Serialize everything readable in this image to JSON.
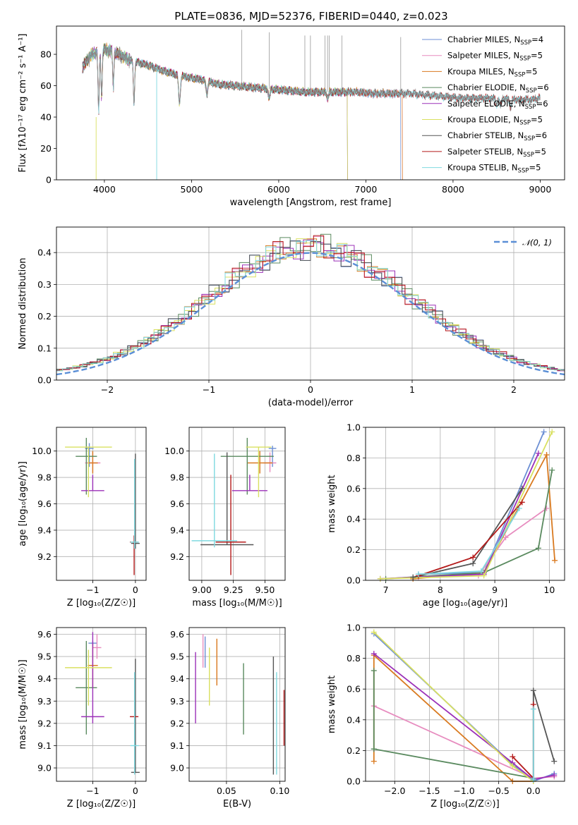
{
  "figure": {
    "title": "PLATE=0836, MJD=52376, FIBERID=0440, z=0.023"
  },
  "colors": {
    "Chabrier MILES": "#6c8fd4",
    "Salpeter MILES": "#e78cbf",
    "Kroupa MILES": "#d97a20",
    "Chabrier ELODIE": "#5a8a5f",
    "Salpeter ELODIE": "#9b30b8",
    "Kroupa ELODIE": "#d9e060",
    "Chabrier STELIB": "#555555",
    "Salpeter STELIB": "#b41a1a",
    "Kroupa STELIB": "#7fd9e0",
    "normal": "#5b8fd6"
  },
  "chart_data": [
    {
      "id": "spectrum",
      "type": "line",
      "xlabel": "wavelength [Angstrom, rest frame]",
      "ylabel": "Flux [fλ10⁻¹⁷ erg cm⁻² s⁻¹ A⁻¹]",
      "xlim": [
        3450,
        9280
      ],
      "ylim": [
        0,
        98
      ],
      "xticks": [
        4000,
        5000,
        6000,
        7000,
        8000,
        9000
      ],
      "yticks": [
        0,
        20,
        40,
        60,
        80
      ],
      "grid": false,
      "legend_position": "top-right",
      "data_series": {
        "name": "data",
        "x": [
          3750,
          3850,
          4000,
          4100,
          4300,
          4500,
          4700,
          4900,
          5100,
          5300,
          5500,
          5700,
          5900,
          6100,
          6300,
          6500,
          6700,
          6900,
          7100,
          7300,
          7500,
          7700,
          7900,
          8100,
          8300,
          8500,
          8700,
          8900,
          9000
        ],
        "y": [
          72,
          80,
          83,
          82,
          76,
          73,
          69,
          66,
          64,
          61,
          60,
          59,
          58,
          57,
          56,
          56,
          56,
          56,
          55,
          55,
          55,
          54,
          53,
          52,
          52,
          52,
          51,
          51,
          52
        ]
      },
      "absorption_lines": [
        3934,
        3968,
        4102,
        4340,
        4861,
        5175,
        5890,
        6563,
        8498,
        8542,
        8662
      ],
      "sky_spikes": [
        5577,
        5892,
        6300,
        6364,
        6532,
        6560,
        6580,
        6724,
        7400
      ],
      "series": [
        {
          "name": "Chabrier MILES",
          "nssp": "4",
          "end": 7400
        },
        {
          "name": "Salpeter MILES",
          "nssp": "5",
          "end": 7420
        },
        {
          "name": "Kroupa MILES",
          "nssp": "5",
          "end": 7420
        },
        {
          "name": "Chabrier ELODIE",
          "nssp": "6",
          "end": 6790
        },
        {
          "name": "Salpeter ELODIE",
          "nssp": "6",
          "end": 6790
        },
        {
          "name": "Kroupa ELODIE",
          "nssp": "5",
          "end": 6790
        },
        {
          "name": "Chabrier STELIB",
          "nssp": "6",
          "end": 9000
        },
        {
          "name": "Salpeter STELIB",
          "nssp": "5",
          "end": 9000
        },
        {
          "name": "Kroupa STELIB",
          "nssp": "5",
          "end": 9000
        }
      ]
    },
    {
      "id": "residuals",
      "type": "line",
      "xlabel": "(data-model)/error",
      "ylabel": "Normed distribution",
      "xlim": [
        -2.5,
        2.5
      ],
      "ylim": [
        0,
        0.48
      ],
      "xticks": [
        -2,
        -1,
        0,
        1,
        2
      ],
      "yticks": [
        0.0,
        0.1,
        0.2,
        0.3,
        0.4
      ],
      "grid": true,
      "legend_position": "top-right",
      "legend": "𝒩(0, 1)",
      "bin_width": 0.1
    },
    {
      "id": "age_vs_z",
      "type": "scatter",
      "xlabel": "Z [log₁₀(Z/Z☉)]",
      "ylabel": "age  [log₁₀(age/yr)]",
      "xlim": [
        -1.85,
        0.25
      ],
      "ylim": [
        9.02,
        10.18
      ],
      "xticks": [
        -1,
        0
      ],
      "yticks": [
        9.2,
        9.4,
        9.6,
        9.8,
        10.0
      ],
      "grid": true,
      "points": [
        {
          "name": "Chabrier MILES",
          "x": -1.08,
          "y": 10.02,
          "xerr": 0.1,
          "yerr": [
            0.14,
            0.04
          ]
        },
        {
          "name": "Salpeter MILES",
          "x": -1.0,
          "y": 9.91,
          "xerr": 0.18,
          "yerr": [
            0.07,
            0.08
          ]
        },
        {
          "name": "Kroupa MILES",
          "x": -1.0,
          "y": 9.91,
          "xerr": 0.12,
          "yerr": [
            0.08,
            0.09
          ]
        },
        {
          "name": "Chabrier ELODIE",
          "x": -1.15,
          "y": 9.96,
          "xerr": 0.25,
          "yerr": [
            0.29,
            0.14
          ]
        },
        {
          "name": "Salpeter ELODIE",
          "x": -1.0,
          "y": 9.7,
          "xerr": 0.27,
          "yerr": [
            0.0,
            0.12
          ]
        },
        {
          "name": "Kroupa ELODIE",
          "x": -1.1,
          "y": 10.03,
          "xerr": 0.55,
          "yerr": [
            0.38,
            0.0
          ]
        },
        {
          "name": "Chabrier STELIB",
          "x": 0.0,
          "y": 9.3,
          "xerr": 0.1,
          "yerr": [
            0.04,
            0.68
          ]
        },
        {
          "name": "Salpeter STELIB",
          "x": -0.03,
          "y": 9.31,
          "xerr": 0.1,
          "yerr": [
            0.25,
            0.05
          ]
        },
        {
          "name": "Kroupa STELIB",
          "x": -0.02,
          "y": 9.31,
          "xerr": 0.1,
          "yerr": [
            0.05,
            0.63
          ]
        }
      ]
    },
    {
      "id": "age_vs_mass",
      "type": "scatter",
      "xlabel": "mass [log₁₀(M/M☉)]",
      "ylabel": "",
      "xlim": [
        8.9,
        9.66
      ],
      "ylim": [
        9.02,
        10.18
      ],
      "xticks": [
        9.0,
        9.25,
        9.5
      ],
      "tick_labels": [
        "9.00",
        "9.25",
        "9.50"
      ],
      "yticks": [
        9.2,
        9.4,
        9.6,
        9.8,
        10.0
      ],
      "grid": true,
      "points": [
        {
          "name": "Chabrier MILES",
          "x": 9.56,
          "y": 10.02,
          "xerr": 0.03,
          "yerr": [
            0.14,
            0.02
          ]
        },
        {
          "name": "Salpeter MILES",
          "x": 9.54,
          "y": 9.91,
          "xerr": 0.05,
          "yerr": [
            0.07,
            0.08
          ]
        },
        {
          "name": "Kroupa MILES",
          "x": 9.46,
          "y": 9.91,
          "xerr": 0.1,
          "yerr": [
            0.08,
            0.09
          ]
        },
        {
          "name": "Chabrier ELODIE",
          "x": 9.36,
          "y": 9.96,
          "xerr": 0.21,
          "yerr": [
            0.29,
            0.14
          ]
        },
        {
          "name": "Salpeter ELODIE",
          "x": 9.38,
          "y": 9.7,
          "xerr": 0.14,
          "yerr": [
            0.0,
            0.12
          ]
        },
        {
          "name": "Kroupa ELODIE",
          "x": 9.45,
          "y": 10.03,
          "xerr": 0.1,
          "yerr": [
            0.38,
            0.0
          ]
        },
        {
          "name": "Chabrier STELIB",
          "x": 9.2,
          "y": 9.29,
          "xerr": 0.21,
          "yerr": [
            0.0,
            0.7
          ]
        },
        {
          "name": "Salpeter STELIB",
          "x": 9.23,
          "y": 9.31,
          "xerr": 0.12,
          "yerr": [
            0.25,
            0.51
          ]
        },
        {
          "name": "Kroupa STELIB",
          "x": 9.1,
          "y": 9.32,
          "xerr": 0.18,
          "yerr": [
            0.05,
            0.66
          ]
        }
      ]
    },
    {
      "id": "weight_vs_age",
      "type": "line",
      "xlabel": "age  [log₁₀(age/yr)]",
      "ylabel": "mass weight",
      "xlim": [
        6.63,
        10.28
      ],
      "ylim": [
        0,
        1.0
      ],
      "xticks": [
        7,
        8,
        9,
        10
      ],
      "yticks": [
        0.0,
        0.2,
        0.4,
        0.6,
        0.8,
        1.0
      ],
      "grid": true,
      "series": [
        {
          "name": "Chabrier MILES",
          "x": [
            7.6,
            8.8,
            9.9
          ],
          "y": [
            0.04,
            0.05,
            0.97
          ]
        },
        {
          "name": "Salpeter MILES",
          "x": [
            7.6,
            8.7,
            9.2,
            9.95
          ],
          "y": [
            0.02,
            0.03,
            0.28,
            0.47
          ]
        },
        {
          "name": "Kroupa MILES",
          "x": [
            7.5,
            8.8,
            9.95,
            10.1
          ],
          "y": [
            0.01,
            0.05,
            0.82,
            0.13
          ]
        },
        {
          "name": "Chabrier ELODIE",
          "x": [
            7.0,
            8.8,
            9.8,
            10.05
          ],
          "y": [
            0.01,
            0.05,
            0.21,
            0.72
          ]
        },
        {
          "name": "Salpeter ELODIE",
          "x": [
            6.9,
            8.8,
            9.8
          ],
          "y": [
            0.01,
            0.04,
            0.83
          ]
        },
        {
          "name": "Kroupa ELODIE",
          "x": [
            6.9,
            8.8,
            10.05
          ],
          "y": [
            0.01,
            0.03,
            0.97
          ]
        },
        {
          "name": "Chabrier STELIB",
          "x": [
            7.5,
            8.6,
            9.5
          ],
          "y": [
            0.02,
            0.11,
            0.6
          ]
        },
        {
          "name": "Salpeter STELIB",
          "x": [
            7.6,
            8.6,
            9.5
          ],
          "y": [
            0.03,
            0.15,
            0.51
          ]
        },
        {
          "name": "Kroupa STELIB",
          "x": [
            7.6,
            8.75,
            9.45
          ],
          "y": [
            0.04,
            0.06,
            0.47
          ]
        }
      ]
    },
    {
      "id": "mass_vs_z",
      "type": "scatter",
      "xlabel": "Z [log₁₀(Z/Z☉)]",
      "ylabel": "mass [log₁₀(M/M☉)]",
      "xlim": [
        -1.85,
        0.25
      ],
      "ylim": [
        8.94,
        9.63
      ],
      "xticks": [
        -1,
        0
      ],
      "yticks": [
        9.0,
        9.1,
        9.2,
        9.3,
        9.4,
        9.5,
        9.6
      ],
      "grid": true,
      "points": [
        {
          "name": "Chabrier MILES",
          "x": -1.0,
          "y": 9.56,
          "xerr": 0.1,
          "yerr": [
            0.01,
            0.01
          ]
        },
        {
          "name": "Salpeter MILES",
          "x": -0.9,
          "y": 9.54,
          "xerr": 0.1,
          "yerr": [
            0.05,
            0.06
          ]
        },
        {
          "name": "Kroupa MILES",
          "x": -1.0,
          "y": 9.46,
          "xerr": 0.12,
          "yerr": [
            0.1,
            0.1
          ]
        },
        {
          "name": "Chabrier ELODIE",
          "x": -1.15,
          "y": 9.36,
          "xerr": 0.25,
          "yerr": [
            0.21,
            0.21
          ]
        },
        {
          "name": "Salpeter ELODIE",
          "x": -1.0,
          "y": 9.23,
          "xerr": 0.27,
          "yerr": [
            0.03,
            0.38
          ]
        },
        {
          "name": "Kroupa ELODIE",
          "x": -1.1,
          "y": 9.45,
          "xerr": 0.55,
          "yerr": [
            0.17,
            0.08
          ]
        },
        {
          "name": "Chabrier STELIB",
          "x": 0.0,
          "y": 8.98,
          "xerr": 0.1,
          "yerr": [
            0.0,
            0.51
          ]
        },
        {
          "name": "Salpeter STELIB",
          "x": -0.03,
          "y": 9.23,
          "xerr": 0.1,
          "yerr": [
            0.0,
            0.0
          ]
        },
        {
          "name": "Kroupa STELIB",
          "x": -0.02,
          "y": 9.1,
          "xerr": 0.1,
          "yerr": [
            0.13,
            0.33
          ]
        }
      ]
    },
    {
      "id": "mass_vs_ebv",
      "type": "scatter",
      "xlabel": "E(B-V)",
      "ylabel": "",
      "xlim": [
        0.015,
        0.105
      ],
      "ylim": [
        8.94,
        9.63
      ],
      "xticks": [
        0.05,
        0.1
      ],
      "tick_labels": [
        "0.05",
        "0.10"
      ],
      "yticks": [
        9.0,
        9.1,
        9.2,
        9.3,
        9.4,
        9.5,
        9.6
      ],
      "grid": true,
      "segments": [
        {
          "name": "Chabrier MILES",
          "x": 0.03,
          "y": [
            9.45,
            9.59
          ]
        },
        {
          "name": "Salpeter MILES",
          "x": 0.028,
          "y": [
            9.45,
            9.6
          ]
        },
        {
          "name": "Kroupa MILES",
          "x": 0.041,
          "y": [
            9.37,
            9.58
          ]
        },
        {
          "name": "Chabrier ELODIE",
          "x": 0.066,
          "y": [
            9.15,
            9.47
          ]
        },
        {
          "name": "Salpeter ELODIE",
          "x": 0.021,
          "y": [
            9.2,
            9.52
          ]
        },
        {
          "name": "Kroupa ELODIE",
          "x": 0.034,
          "y": [
            9.28,
            9.54
          ]
        },
        {
          "name": "Chabrier STELIB",
          "x": 0.094,
          "y": [
            8.97,
            9.5
          ]
        },
        {
          "name": "Salpeter STELIB",
          "x": 0.104,
          "y": [
            9.1,
            9.35
          ]
        },
        {
          "name": "Kroupa STELIB",
          "x": 0.097,
          "y": [
            8.97,
            9.43
          ]
        }
      ]
    },
    {
      "id": "weight_vs_z",
      "type": "line",
      "xlabel": "Z [log₁₀(Z/Z☉)]",
      "ylabel": "mass weight",
      "xlim": [
        -2.42,
        0.45
      ],
      "ylim": [
        0,
        1.0
      ],
      "xticks": [
        -2.0,
        -1.5,
        -1.0,
        -0.5,
        0.0
      ],
      "tick_labels": [
        "−2.0",
        "−1.5",
        "−1.0",
        "−0.5",
        "0.0"
      ],
      "yticks": [
        0.0,
        0.2,
        0.4,
        0.6,
        0.8,
        1.0
      ],
      "grid": true,
      "series": [
        {
          "name": "Chabrier MILES",
          "x": [
            -2.3,
            -0.3,
            0.0,
            0.3
          ],
          "y": [
            0.96,
            0.11,
            0.0,
            0.05
          ]
        },
        {
          "name": "Salpeter MILES",
          "x": [
            -2.3,
            0.0,
            0.3
          ],
          "y": [
            0.49,
            0.02,
            0.03
          ]
        },
        {
          "name": "Kroupa MILES",
          "x": [
            -2.3,
            -2.3,
            -0.3,
            0.0
          ],
          "y": [
            0.13,
            0.82,
            0.0,
            0.0
          ]
        },
        {
          "name": "Chabrier ELODIE",
          "x": [
            -2.3,
            -2.3,
            -2.3,
            0.0
          ],
          "y": [
            0.72,
            0.21,
            0.21,
            0.02
          ]
        },
        {
          "name": "Salpeter ELODIE",
          "x": [
            -2.3,
            -0.3,
            0.0,
            0.3
          ],
          "y": [
            0.83,
            0.12,
            0.01,
            0.04
          ]
        },
        {
          "name": "Kroupa ELODIE",
          "x": [
            -2.3,
            -0.3,
            0.0
          ],
          "y": [
            0.97,
            0.1,
            0.0
          ]
        },
        {
          "name": "Chabrier STELIB",
          "x": [
            0.0,
            0.0,
            0.3
          ],
          "y": [
            0.01,
            0.59,
            0.13
          ]
        },
        {
          "name": "Salpeter STELIB",
          "x": [
            -0.3,
            0.0,
            0.0
          ],
          "y": [
            0.16,
            0.02,
            0.5
          ]
        },
        {
          "name": "Kroupa STELIB",
          "x": [
            0.0,
            0.0,
            0.0
          ],
          "y": [
            0.01,
            0.47,
            0.02
          ]
        }
      ]
    }
  ]
}
